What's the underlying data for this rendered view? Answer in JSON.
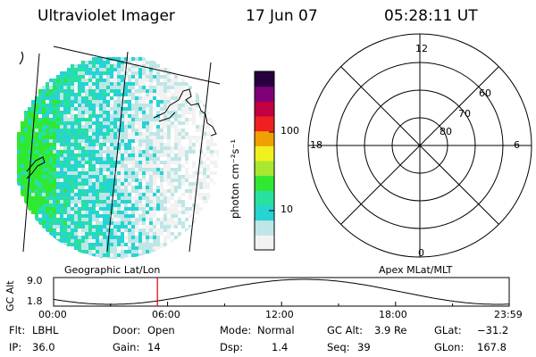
{
  "header": {
    "instrument": "Ultraviolet Imager",
    "date": "17 Jun 07",
    "time": "05:28:11 UT"
  },
  "colorbar": {
    "unit_label": "photon cm⁻²s⁻¹",
    "ticks": [
      {
        "label": "100",
        "value": 100
      },
      {
        "label": "10",
        "value": 10
      }
    ]
  },
  "polar_plot": {
    "mlt_labels": {
      "top": "12",
      "left": "18",
      "right": "6",
      "bottom": "0"
    },
    "lat_labels": [
      "60",
      "70",
      "80"
    ]
  },
  "panel_labels": {
    "left": "Geographic Lat/Lon",
    "right": "Apex MLat/MLT"
  },
  "altitude_plot": {
    "axis_label": "GC Alt",
    "y_ticks": [
      "9.0",
      "1.8"
    ],
    "x_ticks": [
      "00:00",
      "06:00",
      "12:00",
      "18:00",
      "23:59"
    ],
    "marker_time": "05:28"
  },
  "info": {
    "filter": {
      "label": "Flt:",
      "value": "LBHL"
    },
    "ip": {
      "label": "IP:",
      "value": "36.0"
    },
    "door": {
      "label": "Door:",
      "value": "Open"
    },
    "gain": {
      "label": "Gain:",
      "value": "14"
    },
    "mode": {
      "label": "Mode:",
      "value": "Normal"
    },
    "dsp": {
      "label": "Dsp:",
      "value": "1.4"
    },
    "gc_alt": {
      "label": "GC Alt:",
      "value": "3.9 Re"
    },
    "seq": {
      "label": "Seq:",
      "value": "39"
    },
    "glat": {
      "label": "GLat:",
      "value": "−31.2"
    },
    "glon": {
      "label": "GLon:",
      "value": "167.8"
    }
  },
  "colors": {
    "colorbar_stops": [
      "#f2f2f2",
      "#bfe6e6",
      "#27d3d3",
      "#28e0a0",
      "#30e830",
      "#a8e830",
      "#f0f020",
      "#f0a000",
      "#f02020",
      "#c00040",
      "#80007a",
      "#280040"
    ]
  }
}
